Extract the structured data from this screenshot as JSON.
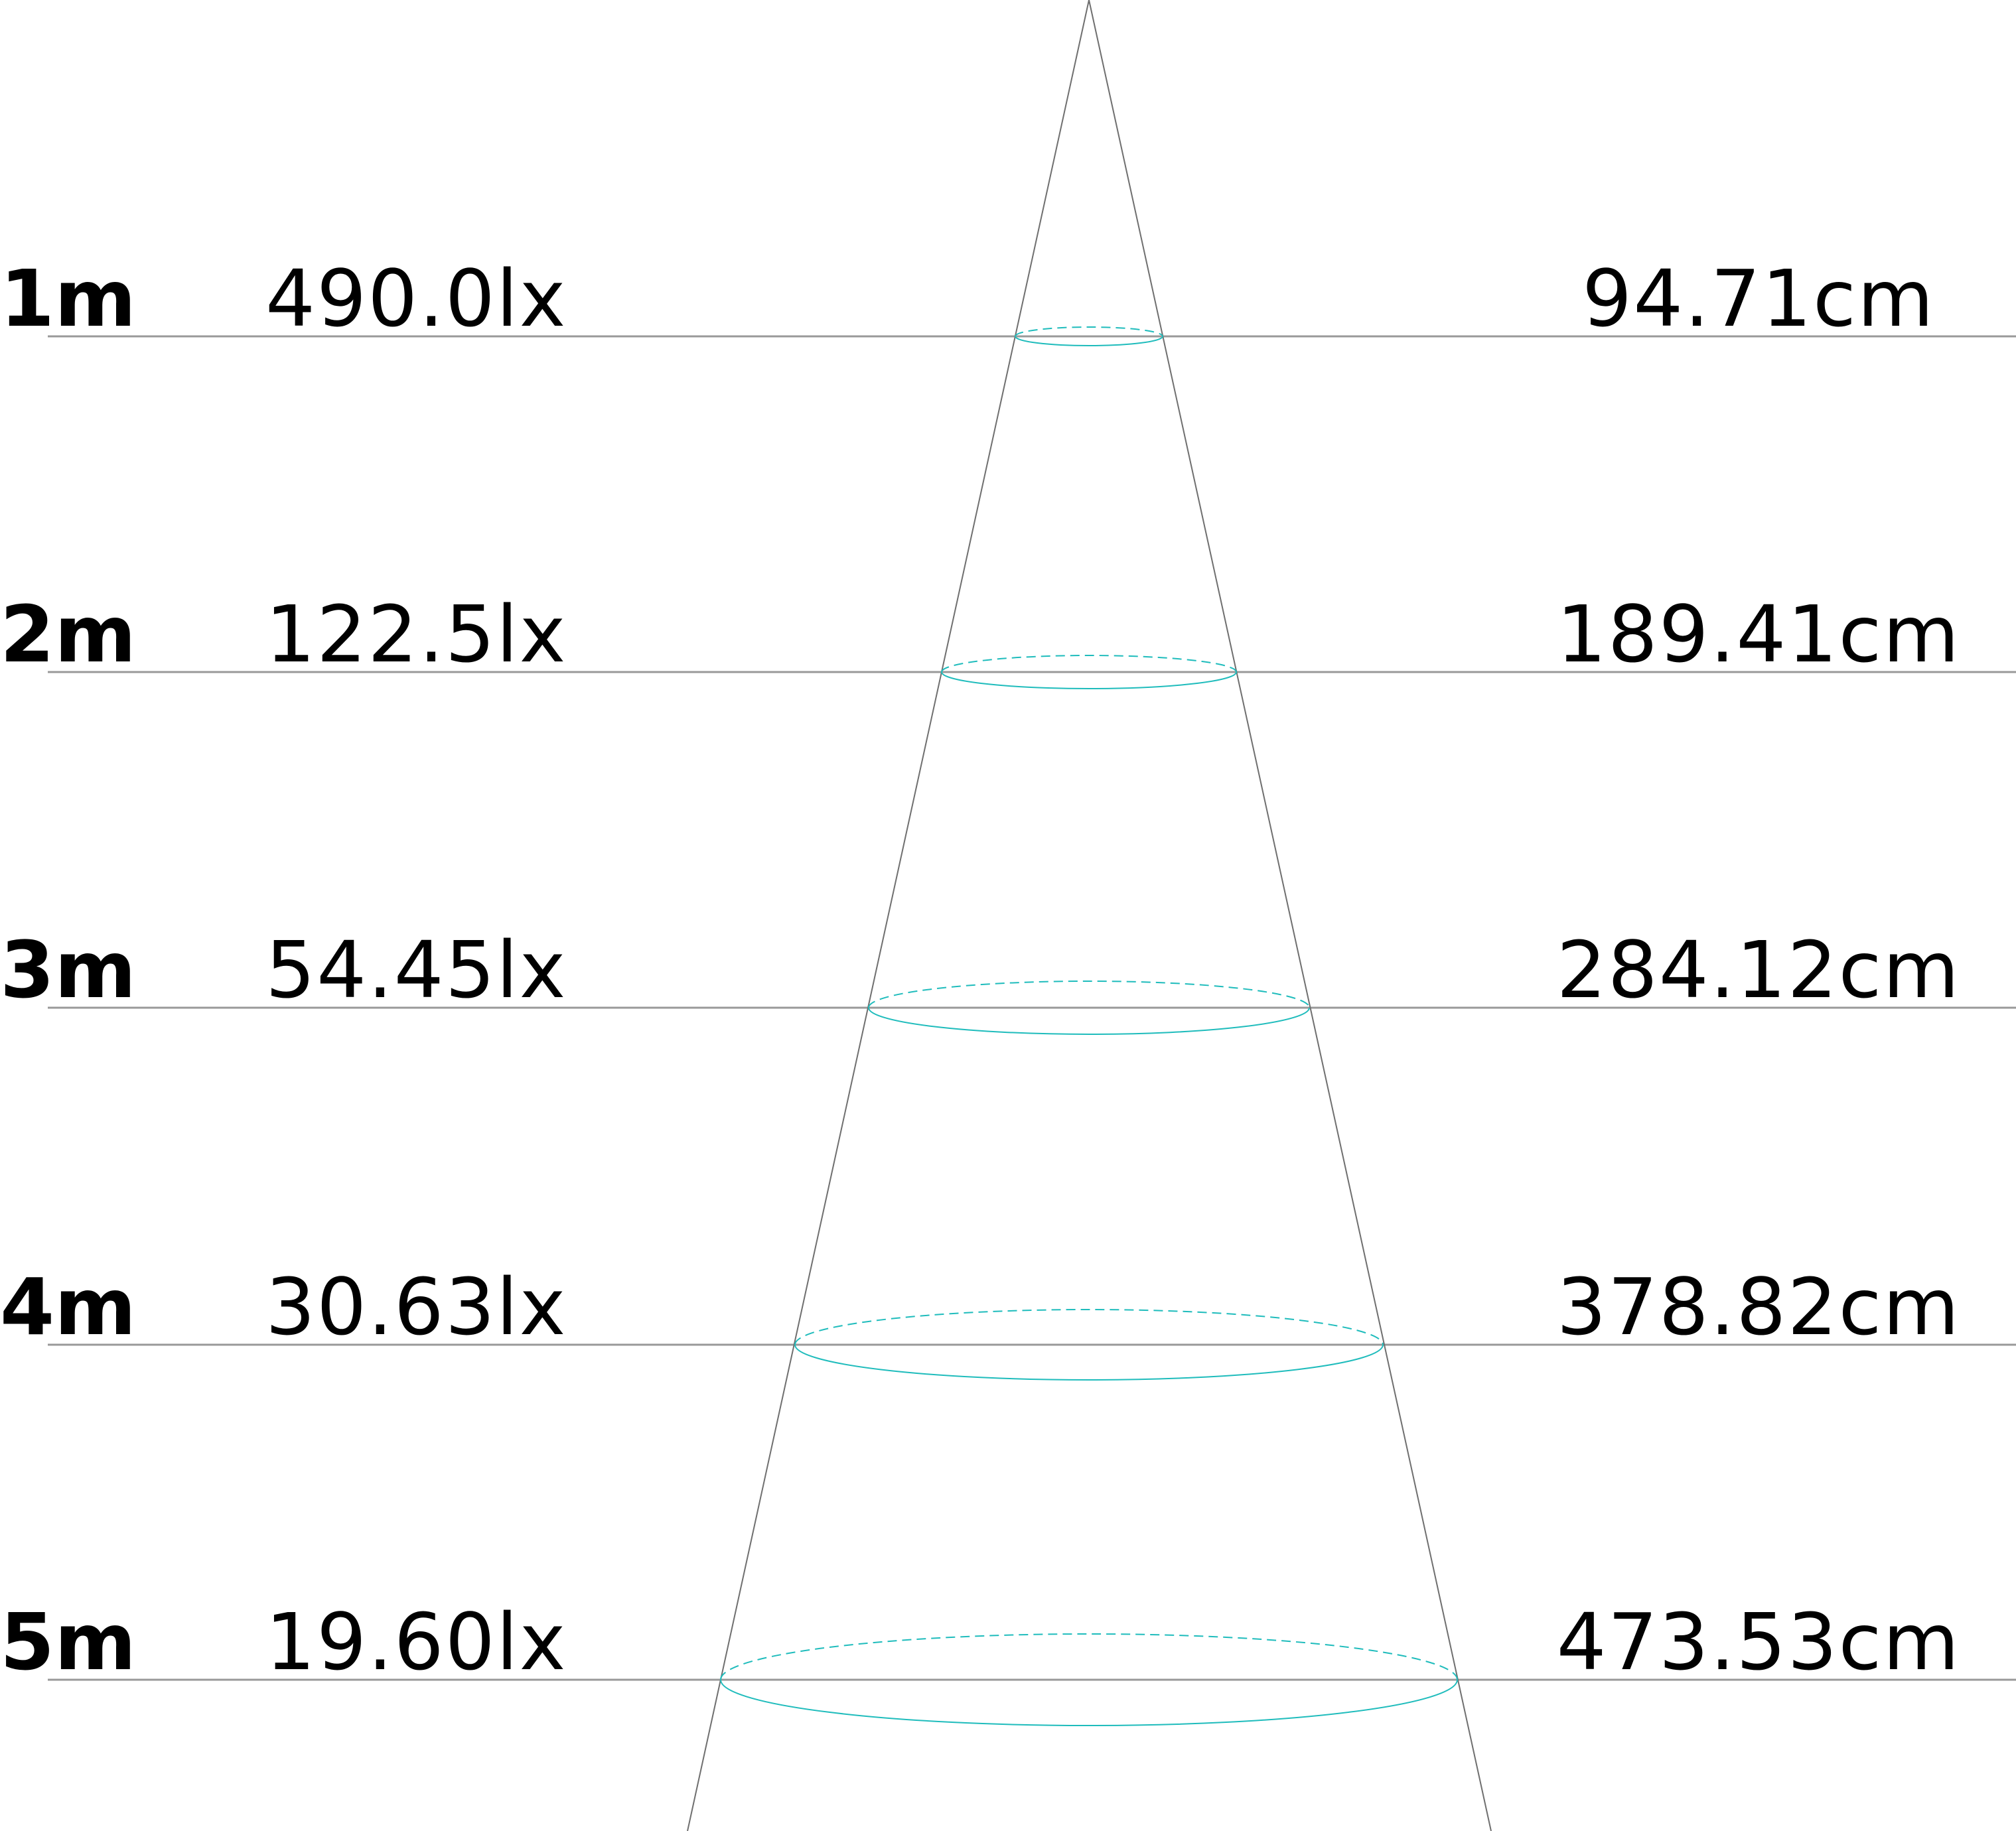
{
  "colors": {
    "line": "#999999",
    "cone": "#6f6f6f",
    "spot": "#1fbcbc",
    "text": "#000000"
  },
  "rows": [
    {
      "distance": "1m",
      "illuminance": "490.0lx",
      "diameter": "94.71cm"
    },
    {
      "distance": "2m",
      "illuminance": "122.5lx",
      "diameter": "189.41cm"
    },
    {
      "distance": "3m",
      "illuminance": "54.45lx",
      "diameter": "284.12cm"
    },
    {
      "distance": "4m",
      "illuminance": "30.63lx",
      "diameter": "378.82cm"
    },
    {
      "distance": "5m",
      "illuminance": "19.60lx",
      "diameter": "473.53cm"
    }
  ]
}
